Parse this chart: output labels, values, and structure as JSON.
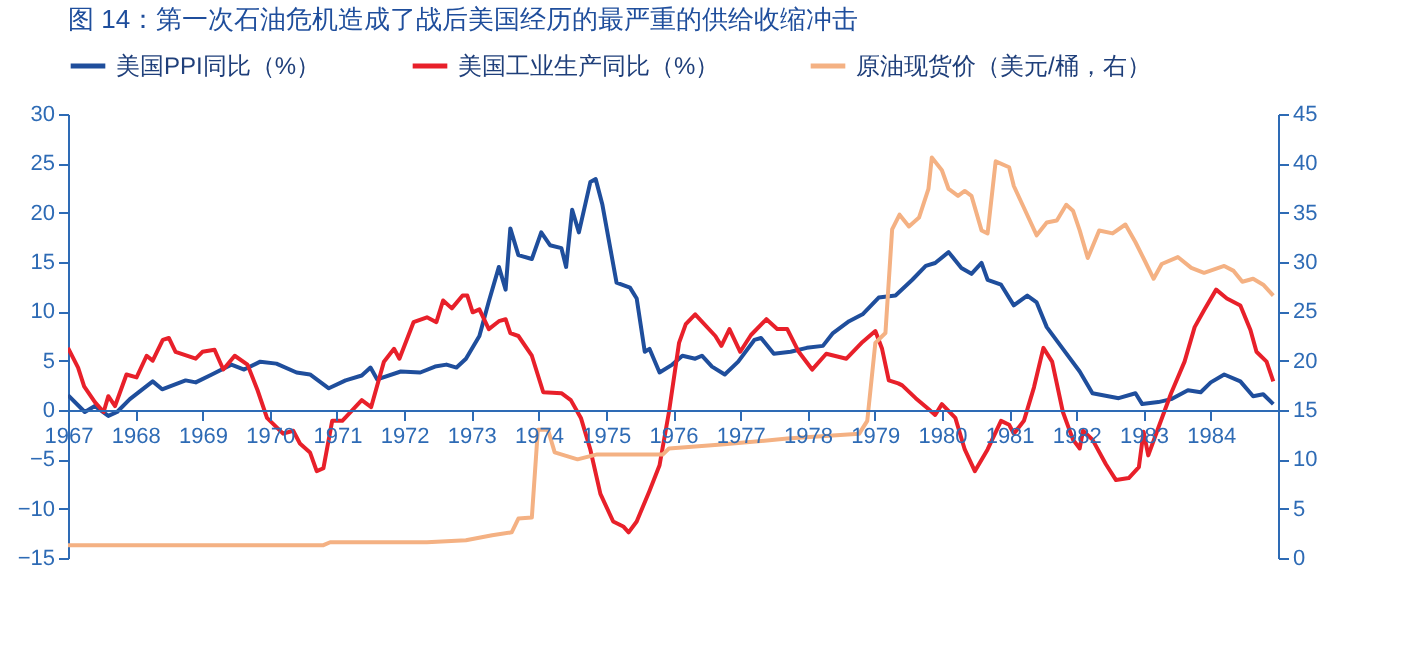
{
  "chart_data": {
    "type": "line",
    "title": "图 14：第一次石油危机造成了战后美国经历的最严重的供给收缩冲击",
    "xlim": [
      1967,
      1985
    ],
    "xticks": [
      1967,
      1968,
      1969,
      1970,
      1971,
      1972,
      1973,
      1974,
      1975,
      1976,
      1977,
      1978,
      1979,
      1980,
      1981,
      1982,
      1983,
      1984
    ],
    "ylim": [
      -15,
      30
    ],
    "yticks": [
      -15,
      -10,
      -5,
      0,
      5,
      10,
      15,
      20,
      25,
      30
    ],
    "y2lim": [
      0,
      45
    ],
    "y2ticks": [
      0,
      5,
      10,
      15,
      20,
      25,
      30,
      35,
      40,
      45
    ],
    "grid": false,
    "legend": "top",
    "line_style": "solid",
    "marker": "none",
    "series": [
      {
        "name": "美国PPI同比（%）",
        "color": "#1f4e9c",
        "x": [
          1967.0,
          1967.25,
          1967.4,
          1967.6,
          1967.73,
          1967.92,
          1968.26,
          1968.4,
          1968.75,
          1968.9,
          1969.14,
          1969.43,
          1969.62,
          1969.86,
          1970.1,
          1970.4,
          1970.6,
          1970.88,
          1971.13,
          1971.37,
          1971.5,
          1971.6,
          1971.95,
          1972.24,
          1972.46,
          1972.63,
          1972.78,
          1972.92,
          1973.12,
          1973.26,
          1973.41,
          1973.51,
          1973.58,
          1973.7,
          1973.9,
          1974.04,
          1974.17,
          1974.34,
          1974.41,
          1974.5,
          1974.6,
          1974.77,
          1974.85,
          1974.95,
          1975.16,
          1975.36,
          1975.46,
          1975.58,
          1975.65,
          1975.8,
          1975.99,
          1976.14,
          1976.33,
          1976.43,
          1976.58,
          1976.77,
          1976.97,
          1977.21,
          1977.31,
          1977.5,
          1977.75,
          1977.99,
          1978.23,
          1978.38,
          1978.62,
          1978.82,
          1979.06,
          1979.31,
          1979.56,
          1979.76,
          1979.9,
          1980.1,
          1980.29,
          1980.44,
          1980.59,
          1980.68,
          1980.88,
          1981.07,
          1981.27,
          1981.41,
          1981.56,
          1981.8,
          1982.05,
          1982.24,
          1982.63,
          1982.88,
          1982.98,
          1983.22,
          1983.41,
          1983.66,
          1983.85,
          1984.0,
          1984.2,
          1984.44,
          1984.63,
          1984.78,
          1984.93
        ],
        "values": [
          1.5,
          -0.2,
          0.4,
          -0.6,
          -0.2,
          1.1,
          2.9,
          2.1,
          3.0,
          2.8,
          3.6,
          4.6,
          4.1,
          4.9,
          4.7,
          3.8,
          3.6,
          2.2,
          3.0,
          3.5,
          4.3,
          3.1,
          3.9,
          3.8,
          4.4,
          4.6,
          4.3,
          5.2,
          7.5,
          11.0,
          14.5,
          12.2,
          18.4,
          15.7,
          15.3,
          18.0,
          16.7,
          16.4,
          14.5,
          20.3,
          18.0,
          23.1,
          23.4,
          20.8,
          12.9,
          12.4,
          11.3,
          5.9,
          6.2,
          3.8,
          4.6,
          5.5,
          5.2,
          5.5,
          4.4,
          3.6,
          4.9,
          7.1,
          7.3,
          5.7,
          5.9,
          6.3,
          6.5,
          7.8,
          9.0,
          9.7,
          11.4,
          11.6,
          13.2,
          14.6,
          14.9,
          16.0,
          14.4,
          13.8,
          14.9,
          13.2,
          12.7,
          10.6,
          11.6,
          10.9,
          8.4,
          6.2,
          3.9,
          1.7,
          1.2,
          1.7,
          0.6,
          0.8,
          1.1,
          2.0,
          1.8,
          2.8,
          3.6,
          2.9,
          1.4,
          1.6,
          0.6
        ]
      },
      {
        "name": "美国工业生产同比（%）",
        "color": "#e8202a",
        "x": [
          1967.0,
          1967.15,
          1967.24,
          1967.4,
          1967.53,
          1967.6,
          1967.7,
          1967.87,
          1968.02,
          1968.17,
          1968.26,
          1968.41,
          1968.5,
          1968.6,
          1968.9,
          1969.0,
          1969.18,
          1969.31,
          1969.48,
          1969.67,
          1969.82,
          1969.96,
          1970.2,
          1970.35,
          1970.45,
          1970.6,
          1970.7,
          1970.8,
          1970.93,
          1971.08,
          1971.37,
          1971.51,
          1971.7,
          1971.85,
          1971.93,
          1972.14,
          1972.34,
          1972.48,
          1972.58,
          1972.71,
          1972.87,
          1972.94,
          1973.02,
          1973.12,
          1973.26,
          1973.41,
          1973.51,
          1973.58,
          1973.7,
          1973.9,
          1974.07,
          1974.34,
          1974.48,
          1974.63,
          1974.77,
          1974.92,
          1975.11,
          1975.26,
          1975.34,
          1975.46,
          1975.65,
          1975.8,
          1975.94,
          1976.09,
          1976.19,
          1976.33,
          1976.63,
          1976.72,
          1976.84,
          1977.0,
          1977.16,
          1977.39,
          1977.55,
          1977.7,
          1977.87,
          1978.07,
          1978.28,
          1978.58,
          1978.82,
          1979.01,
          1979.11,
          1979.21,
          1979.35,
          1979.41,
          1979.61,
          1979.8,
          1979.9,
          1980.0,
          1980.2,
          1980.34,
          1980.49,
          1980.68,
          1980.88,
          1981.0,
          1981.07,
          1981.22,
          1981.37,
          1981.51,
          1981.64,
          1981.8,
          1981.95,
          1982.05,
          1982.1,
          1982.24,
          1982.44,
          1982.59,
          1982.78,
          1982.93,
          1983.0,
          1983.07,
          1983.22,
          1983.41,
          1983.61,
          1983.76,
          1983.9,
          1984.08,
          1984.24,
          1984.44,
          1984.59,
          1984.68,
          1984.83,
          1984.93
        ],
        "values": [
          6.3,
          4.3,
          2.4,
          0.8,
          -0.2,
          1.4,
          0.4,
          3.6,
          3.3,
          5.5,
          5.0,
          7.1,
          7.3,
          5.9,
          5.2,
          5.9,
          6.1,
          4.1,
          5.5,
          4.6,
          2.0,
          -0.8,
          -2.4,
          -2.1,
          -3.4,
          -4.3,
          -6.2,
          -5.9,
          -1.1,
          -1.1,
          1.0,
          0.3,
          4.9,
          6.2,
          5.2,
          8.9,
          9.4,
          8.9,
          11.1,
          10.3,
          11.6,
          11.6,
          9.9,
          10.2,
          8.2,
          9.0,
          9.2,
          7.8,
          7.5,
          5.5,
          1.8,
          1.7,
          1.0,
          -0.8,
          -4.0,
          -8.5,
          -11.3,
          -11.8,
          -12.4,
          -11.3,
          -8.2,
          -5.6,
          -0.2,
          6.8,
          8.7,
          9.7,
          7.5,
          6.5,
          8.2,
          5.9,
          7.6,
          9.2,
          8.2,
          8.2,
          5.9,
          4.1,
          5.7,
          5.2,
          6.9,
          8.0,
          6.2,
          3.0,
          2.7,
          2.5,
          1.2,
          0.1,
          -0.5,
          0.6,
          -0.8,
          -4.0,
          -6.2,
          -4.0,
          -1.1,
          -1.5,
          -2.4,
          -1.1,
          2.3,
          6.3,
          4.9,
          -0.2,
          -3.0,
          -3.9,
          -2.1,
          -3.0,
          -5.5,
          -7.1,
          -6.9,
          -5.8,
          -2.2,
          -4.6,
          -1.8,
          1.7,
          4.9,
          8.4,
          10.1,
          12.2,
          11.3,
          10.6,
          8.1,
          5.9,
          4.9,
          2.9
        ]
      },
      {
        "name": "原油现货价（美元/桶，右）",
        "color": "#f4b183",
        "axis": "y2",
        "x": [
          1967.0,
          1970.8,
          1970.9,
          1972.34,
          1972.92,
          1973.31,
          1973.6,
          1973.7,
          1973.9,
          1973.99,
          1974.14,
          1974.24,
          1974.58,
          1974.87,
          1975.85,
          1975.94,
          1976.72,
          1977.7,
          1978.77,
          1978.89,
          1979.01,
          1979.16,
          1979.26,
          1979.37,
          1979.51,
          1979.66,
          1979.8,
          1979.85,
          1980.0,
          1980.1,
          1980.24,
          1980.34,
          1980.44,
          1980.59,
          1980.68,
          1980.8,
          1981.0,
          1981.07,
          1981.22,
          1981.41,
          1981.56,
          1981.71,
          1981.85,
          1981.95,
          1982.05,
          1982.17,
          1982.34,
          1982.54,
          1982.73,
          1982.88,
          1983.02,
          1983.15,
          1983.27,
          1983.51,
          1983.71,
          1983.9,
          1984.2,
          1984.34,
          1984.47,
          1984.63,
          1984.78,
          1984.93
        ],
        "values": [
          1.3,
          1.3,
          1.6,
          1.6,
          1.8,
          2.3,
          2.6,
          4.0,
          4.1,
          13.0,
          13.0,
          10.7,
          10.0,
          10.5,
          10.5,
          11.1,
          11.5,
          12.1,
          12.6,
          13.9,
          21.8,
          22.8,
          33.3,
          34.8,
          33.6,
          34.5,
          37.4,
          40.6,
          39.3,
          37.4,
          36.7,
          37.2,
          36.7,
          33.2,
          32.9,
          40.2,
          39.6,
          37.7,
          35.5,
          32.7,
          34.0,
          34.2,
          35.8,
          35.2,
          33.2,
          30.4,
          33.2,
          32.9,
          33.8,
          32.0,
          30.1,
          28.3,
          29.8,
          30.5,
          29.4,
          28.9,
          29.6,
          29.1,
          28.0,
          28.3,
          27.7,
          26.6
        ]
      }
    ]
  }
}
